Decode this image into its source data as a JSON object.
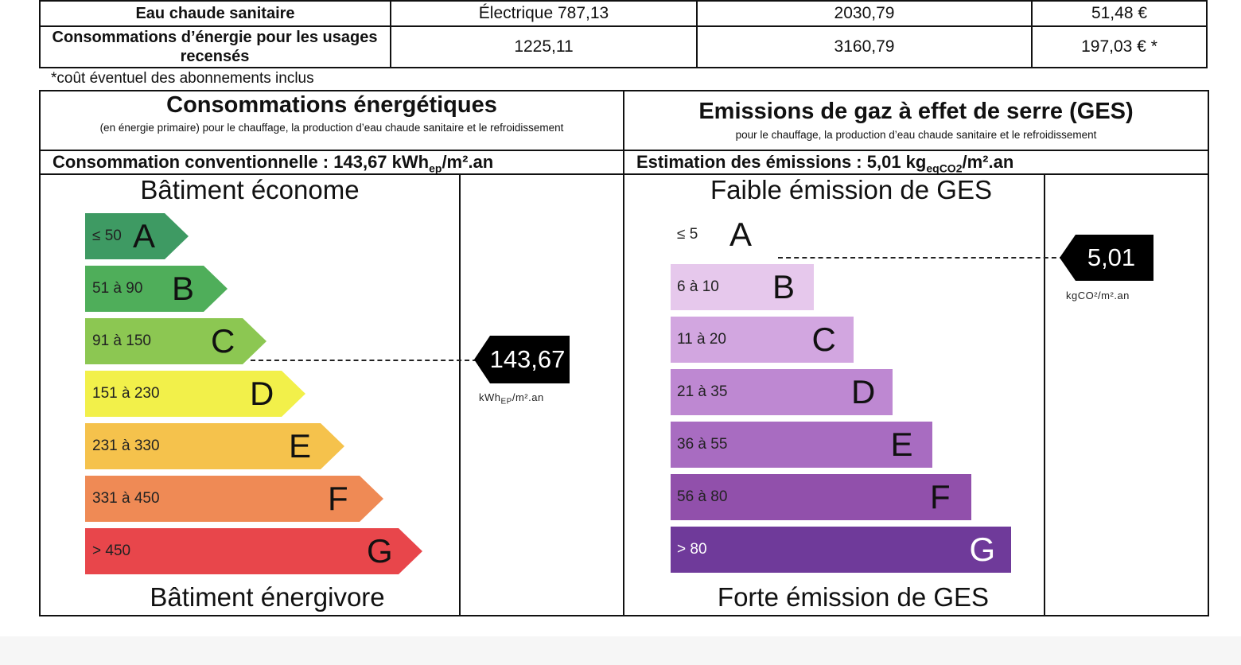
{
  "top_table": {
    "rows": [
      {
        "label": "Eau chaude sanitaire",
        "col1": "Électrique 787,13",
        "col2": "2030,79",
        "col3": "51,48 €"
      },
      {
        "label": "Consommations d’énergie pour les usages recensés",
        "col1": "1225,11",
        "col2": "3160,79",
        "col3": "197,03 € *"
      }
    ],
    "footnote": "*coût éventuel des abonnements inclus"
  },
  "energy": {
    "title": "Consommations énergétiques",
    "subtitle": "(en énergie primaire) pour le chauffage, la production d’eau chaude sanitaire et le refroidissement",
    "conv_line": "Consommation conventionnelle : 143,67 kWhep/m².an",
    "top_label": "Bâtiment économe",
    "bottom_label": "Bâtiment énergivore",
    "value": "143,67",
    "unit": "kWhEP/m².an",
    "classes": [
      {
        "range": "≤ 50",
        "letter": "A",
        "color": "#3e9a63"
      },
      {
        "range": "51 à 90",
        "letter": "B",
        "color": "#4fae5a"
      },
      {
        "range": "91 à 150",
        "letter": "C",
        "color": "#8cc752"
      },
      {
        "range": "151 à 230",
        "letter": "D",
        "color": "#f2f04a"
      },
      {
        "range": "231 à 330",
        "letter": "E",
        "color": "#f5c24c"
      },
      {
        "range": "331 à 450",
        "letter": "F",
        "color": "#ef8a55"
      },
      {
        "range": "> 450",
        "letter": "G",
        "color": "#e8464b"
      }
    ],
    "current_class": "C"
  },
  "ges": {
    "title": "Emissions de gaz à effet de serre (GES)",
    "subtitle": "pour le chauffage, la production d’eau chaude sanitaire et le refroidissement",
    "conv_line": "Estimation des émissions : 5,01 kgeqCO2/m².an",
    "top_label": "Faible émission de GES",
    "bottom_label": "Forte émission de GES",
    "value": "5,01",
    "unit": "kgCO²/m².an",
    "classes": [
      {
        "range": "≤ 5",
        "letter": "A",
        "color": ""
      },
      {
        "range": "6 à 10",
        "letter": "B",
        "color": "#e6c8ec"
      },
      {
        "range": "11 à 20",
        "letter": "C",
        "color": "#d2a6e0"
      },
      {
        "range": "21 à 35",
        "letter": "D",
        "color": "#be88d2"
      },
      {
        "range": "36 à 55",
        "letter": "E",
        "color": "#a86cc1"
      },
      {
        "range": "56 à 80",
        "letter": "F",
        "color": "#9150ab"
      },
      {
        "range": "> 80",
        "letter": "G",
        "color": "#6f3a9a"
      }
    ],
    "current_class": "A"
  }
}
